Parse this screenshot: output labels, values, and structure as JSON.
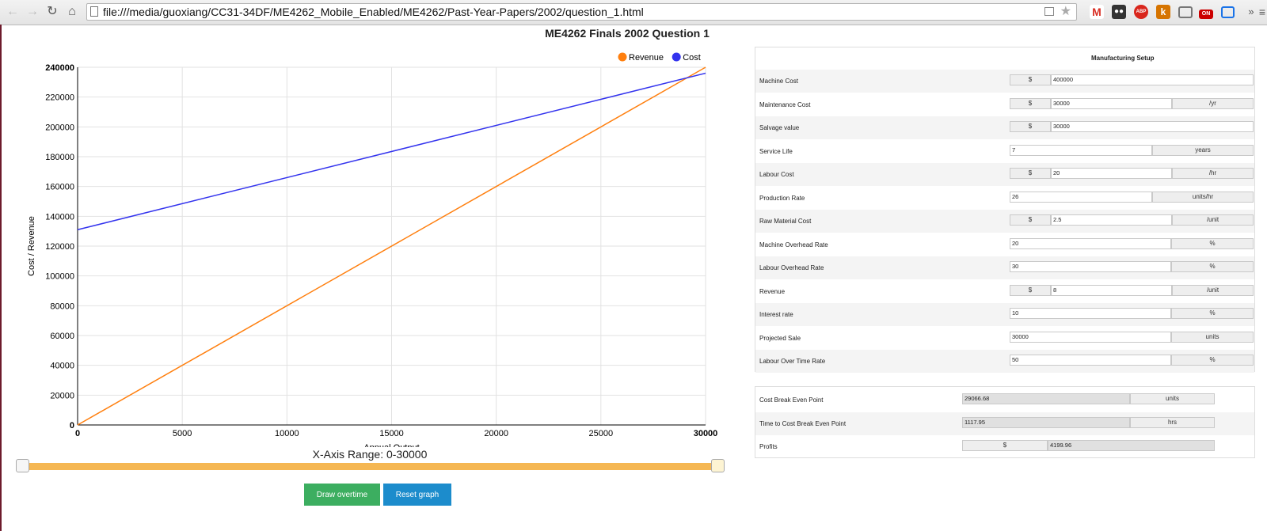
{
  "browser": {
    "url": "file:///media/guoxiang/CC31-34DF/ME4262_Mobile_Enabled/ME4262/Past-Year-Papers/2002/question_1.html",
    "extensions": [
      "gmail-icon",
      "incognito-icon",
      "adblock-icon",
      "k-icon",
      "cast-icon",
      "on-icon",
      "screen-icon"
    ],
    "ext_abp": "ABP",
    "ext_k": "k",
    "ext_on": "ON",
    "overflow": "»"
  },
  "page": {
    "title": "ME4262 Finals 2002 Question 1"
  },
  "chart_data": {
    "type": "line",
    "x": [
      0,
      30000
    ],
    "series": [
      {
        "name": "Revenue",
        "color": "#ff7f0e",
        "values": [
          0,
          240000
        ]
      },
      {
        "name": "Cost",
        "color": "#3333ee",
        "values": [
          131000,
          236000
        ]
      }
    ],
    "xlabel": "Annual Output",
    "ylabel": "Cost / Revenue",
    "xlim": [
      0,
      30000
    ],
    "ylim": [
      0,
      240000
    ],
    "xticks": [
      0,
      5000,
      10000,
      15000,
      20000,
      25000,
      30000
    ],
    "yticks": [
      0,
      20000,
      40000,
      60000,
      80000,
      100000,
      120000,
      140000,
      160000,
      180000,
      200000,
      220000,
      240000
    ],
    "grid": true,
    "legend": "top-right"
  },
  "slider": {
    "label": "X-Axis Range: 0-30000",
    "min": 0,
    "max": 30000
  },
  "buttons": {
    "draw_overtime": "Draw overtime",
    "reset_graph": "Reset graph"
  },
  "setup": {
    "header": "Manufacturing Setup",
    "rows": [
      {
        "label": "Machine Cost",
        "prefix": "$",
        "value": "400000",
        "suffix": ""
      },
      {
        "label": "Maintenance Cost",
        "prefix": "$",
        "value": "30000",
        "suffix": "/yr"
      },
      {
        "label": "Salvage value",
        "prefix": "$",
        "value": "30000",
        "suffix": ""
      },
      {
        "label": "Service Life",
        "prefix": "",
        "value": "7",
        "suffix": "years"
      },
      {
        "label": "Labour Cost",
        "prefix": "$",
        "value": "20",
        "suffix": "/hr"
      },
      {
        "label": "Production Rate",
        "prefix": "",
        "value": "26",
        "suffix": "units/hr"
      },
      {
        "label": "Raw Material Cost",
        "prefix": "$",
        "value": "2.5",
        "suffix": "/unit"
      },
      {
        "label": "Machine Overhead Rate",
        "prefix": "",
        "value": "20",
        "suffix": "%"
      },
      {
        "label": "Labour Overhead Rate",
        "prefix": "",
        "value": "30",
        "suffix": "%"
      },
      {
        "label": "Revenue",
        "prefix": "$",
        "value": "8",
        "suffix": "/unit"
      },
      {
        "label": "Interest rate",
        "prefix": "",
        "value": "10",
        "suffix": "%"
      },
      {
        "label": "Projected Sale",
        "prefix": "",
        "value": "30000",
        "suffix": "units"
      },
      {
        "label": "Labour Over Time Rate",
        "prefix": "",
        "value": "50",
        "suffix": "%"
      }
    ]
  },
  "results": {
    "rows": [
      {
        "label": "Cost Break Even Point",
        "prefix": "",
        "value": "29066.68",
        "suffix": "units"
      },
      {
        "label": "Time to Cost Break Even Point",
        "prefix": "",
        "value": "1117.95",
        "suffix": "hrs"
      },
      {
        "label": "Profits",
        "prefix": "$",
        "value": "4199.96",
        "suffix": ""
      }
    ]
  }
}
